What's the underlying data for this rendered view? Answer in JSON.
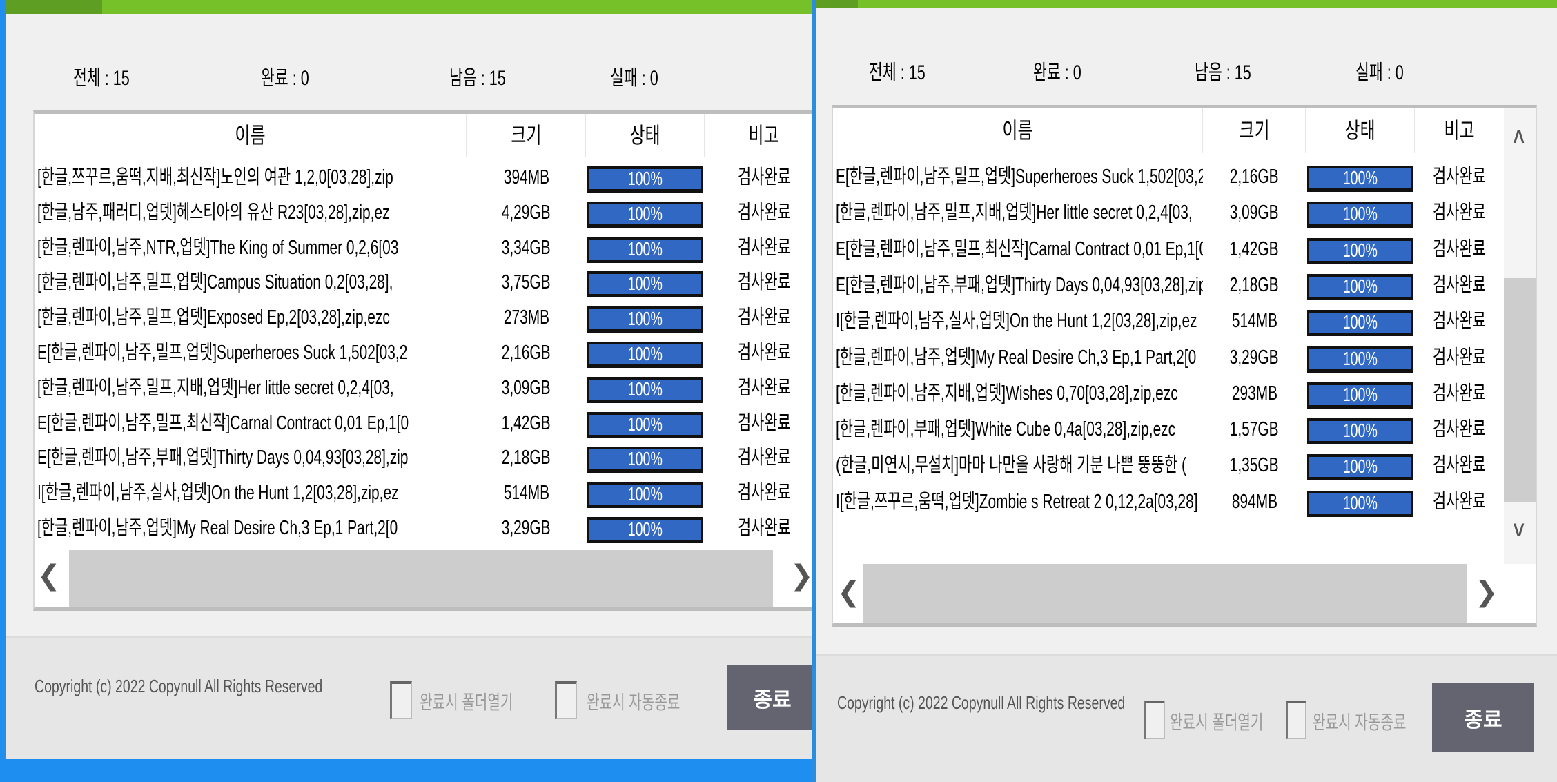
{
  "colors": {
    "accent_green": "#76c02a",
    "progress_fill": "#3068c4",
    "button": "#646470",
    "desktop": "#1e8ff0"
  },
  "stats": {
    "total": "전체 : 15",
    "done": "완료 : 0",
    "remaining": "남음 : 15",
    "failed": "실패 : 0"
  },
  "columns": {
    "name": "이름",
    "size": "크기",
    "status": "상태",
    "note": "비고"
  },
  "left_rows": [
    {
      "name": "[한글,쯔꾸르,움떡,지배,최신작]노인의 여관 1,2,0[03,28],zip",
      "size": "394MB",
      "progress": 100,
      "status": "100%",
      "note": "검사완료"
    },
    {
      "name": "[한글,남주,패러디,업뎃]헤스티아의 유산 R23[03,28],zip,ez",
      "size": "4,29GB",
      "progress": 100,
      "status": "100%",
      "note": "검사완료"
    },
    {
      "name": "[한글,렌파이,남주,NTR,업뎃]The King of Summer 0,2,6[03",
      "size": "3,34GB",
      "progress": 100,
      "status": "100%",
      "note": "검사완료"
    },
    {
      "name": "[한글,렌파이,남주,밀프,업뎃]Campus Situation 0,2[03,28],",
      "size": "3,75GB",
      "progress": 100,
      "status": "100%",
      "note": "검사완료"
    },
    {
      "name": "[한글,렌파이,남주,밀프,업뎃]Exposed Ep,2[03,28],zip,ezc",
      "size": "273MB",
      "progress": 100,
      "status": "100%",
      "note": "검사완료"
    },
    {
      "name": "E[한글,렌파이,남주,밀프,업뎃]Superheroes Suck 1,502[03,2",
      "size": "2,16GB",
      "progress": 100,
      "status": "100%",
      "note": "검사완료"
    },
    {
      "name": "[한글,렌파이,남주,밀프,지배,업뎃]Her little secret 0,2,4[03,",
      "size": "3,09GB",
      "progress": 100,
      "status": "100%",
      "note": "검사완료"
    },
    {
      "name": "E[한글,렌파이,남주,밀프,최신작]Carnal Contract 0,01 Ep,1[0",
      "size": "1,42GB",
      "progress": 100,
      "status": "100%",
      "note": "검사완료"
    },
    {
      "name": "E[한글,렌파이,남주,부패,업뎃]Thirty Days 0,04,93[03,28],zip",
      "size": "2,18GB",
      "progress": 100,
      "status": "100%",
      "note": "검사완료"
    },
    {
      "name": "I[한글,렌파이,남주,실사,업뎃]On the Hunt 1,2[03,28],zip,ez",
      "size": "514MB",
      "progress": 100,
      "status": "100%",
      "note": "검사완료"
    },
    {
      "name": "[한글,렌파이,남주,업뎃]My Real Desire Ch,3 Ep,1 Part,2[0",
      "size": "3,29GB",
      "progress": 100,
      "status": "100%",
      "note": "검사완료"
    }
  ],
  "right_rows": [
    {
      "name": "E[한글,렌파이,남주,밀프,업뎃]Superheroes Suck 1,502[03,2",
      "size": "2,16GB",
      "progress": 100,
      "status": "100%",
      "note": "검사완료"
    },
    {
      "name": "[한글,렌파이,남주,밀프,지배,업뎃]Her little secret 0,2,4[03,",
      "size": "3,09GB",
      "progress": 100,
      "status": "100%",
      "note": "검사완료"
    },
    {
      "name": "E[한글,렌파이,남주,밀프,최신작]Carnal Contract 0,01 Ep,1[0",
      "size": "1,42GB",
      "progress": 100,
      "status": "100%",
      "note": "검사완료"
    },
    {
      "name": "E[한글,렌파이,남주,부패,업뎃]Thirty Days 0,04,93[03,28],zip",
      "size": "2,18GB",
      "progress": 100,
      "status": "100%",
      "note": "검사완료"
    },
    {
      "name": "I[한글,렌파이,남주,실사,업뎃]On the Hunt 1,2[03,28],zip,ez",
      "size": "514MB",
      "progress": 100,
      "status": "100%",
      "note": "검사완료"
    },
    {
      "name": "[한글,렌파이,남주,업뎃]My Real Desire Ch,3 Ep,1 Part,2[0",
      "size": "3,29GB",
      "progress": 100,
      "status": "100%",
      "note": "검사완료"
    },
    {
      "name": "[한글,렌파이,남주,지배,업뎃]Wishes 0,70[03,28],zip,ezc",
      "size": "293MB",
      "progress": 100,
      "status": "100%",
      "note": "검사완료"
    },
    {
      "name": "[한글,렌파이,부패,업뎃]White Cube 0,4a[03,28],zip,ezc",
      "size": "1,57GB",
      "progress": 100,
      "status": "100%",
      "note": "검사완료"
    },
    {
      "name": "(한글,미연시,무설치]마마 나만을 사랑해 기분 나쁜 뚱뚱한 (",
      "size": "1,35GB",
      "progress": 100,
      "status": "100%",
      "note": "검사완료"
    },
    {
      "name": "I[한글,쯔꾸르,움떡,업뎃]Zombie s Retreat 2 0,12,2a[03,28]",
      "size": "894MB",
      "progress": 100,
      "status": "100%",
      "note": "검사완료"
    }
  ],
  "footer": {
    "copyright": "Copyright (c) 2022 Copynull All Rights Reserved",
    "open_folder_label": "완료시 폴더열기",
    "auto_exit_label": "완료시 자동종료",
    "close_button": "종료"
  },
  "scroll": {
    "left_arrow": "❮",
    "right_arrow": "❯",
    "up_arrow": "∧",
    "down_arrow": "∨"
  }
}
